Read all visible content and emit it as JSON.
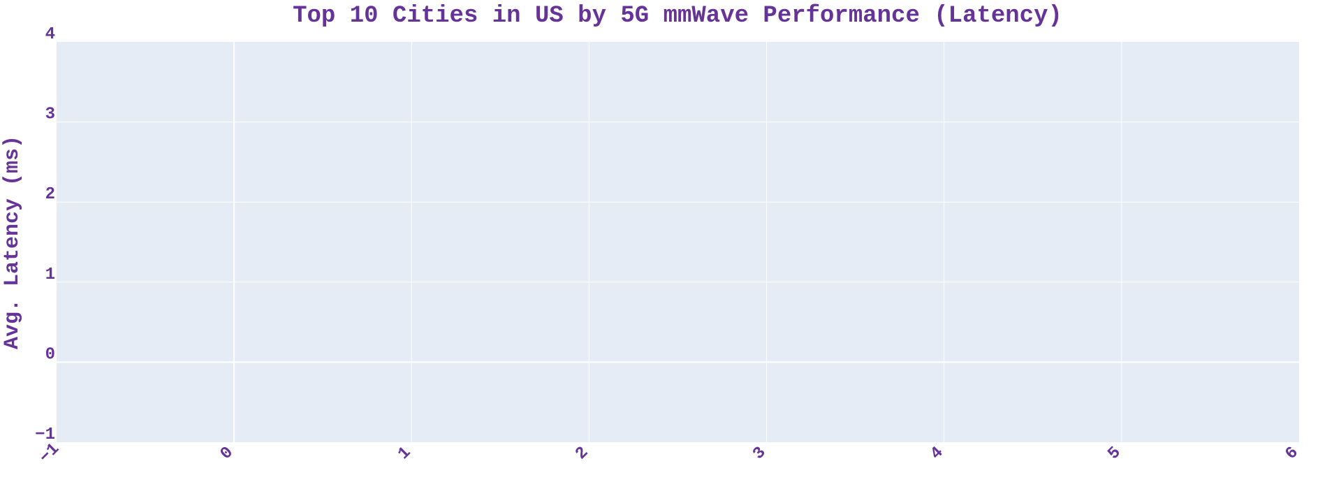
{
  "chart_data": {
    "type": "bar",
    "title": "Top 10 Cities in US by 5G mmWave Performance (Latency)",
    "xlabel": "",
    "ylabel": "Avg. Latency (ms)",
    "categories": [],
    "values": [],
    "xlim": [
      -1,
      6
    ],
    "ylim": [
      -1,
      4
    ],
    "x_ticks": [
      -1,
      0,
      1,
      2,
      3,
      4,
      5,
      6
    ],
    "y_ticks": [
      -1,
      0,
      1,
      2,
      3,
      4
    ],
    "x_tick_labels": [
      "−1",
      "0",
      "1",
      "2",
      "3",
      "4",
      "5",
      "6"
    ],
    "y_tick_labels": [
      "−1",
      "0",
      "1",
      "2",
      "3",
      "4"
    ],
    "grid": true,
    "legend": "none"
  },
  "colors": {
    "text": "#663399",
    "plot_background": "#e5ecf6",
    "gridline": "#ffffff"
  }
}
